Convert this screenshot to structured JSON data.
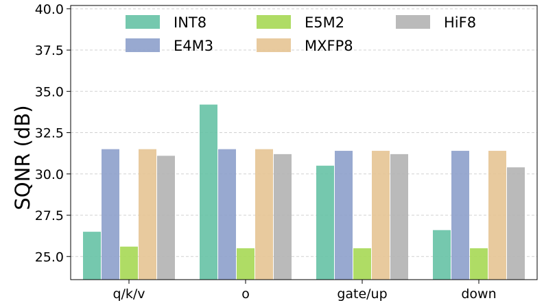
{
  "chart_data": {
    "type": "bar",
    "title": "",
    "xlabel": "",
    "ylabel": "SQNR (dB)",
    "ylim": [
      23.6,
      40.2
    ],
    "yticks": [
      25.0,
      27.5,
      30.0,
      32.5,
      35.0,
      37.5,
      40.0
    ],
    "ytick_labels": [
      "25.0",
      "27.5",
      "30.0",
      "32.5",
      "35.0",
      "37.5",
      "40.0"
    ],
    "grid": true,
    "legend_position": "top-center",
    "categories": [
      "q/k/v",
      "o",
      "gate/up",
      "down"
    ],
    "series": [
      {
        "name": "INT8",
        "color": "#66c2a5",
        "values": [
          26.5,
          34.2,
          30.5,
          26.6
        ]
      },
      {
        "name": "E4M3",
        "color": "#8da0cb",
        "values": [
          31.5,
          31.5,
          31.4,
          31.4
        ]
      },
      {
        "name": "E5M2",
        "color": "#a6d854",
        "values": [
          25.6,
          25.5,
          25.5,
          25.5
        ]
      },
      {
        "name": "MXFP8",
        "color": "#e5c494",
        "values": [
          31.5,
          31.5,
          31.4,
          31.4
        ]
      },
      {
        "name": "HiF8",
        "color": "#b3b3b3",
        "values": [
          31.1,
          31.2,
          31.2,
          30.4
        ]
      }
    ],
    "legend_order": [
      "INT8",
      "E5M2",
      "HiF8",
      "E4M3",
      "MXFP8"
    ]
  }
}
